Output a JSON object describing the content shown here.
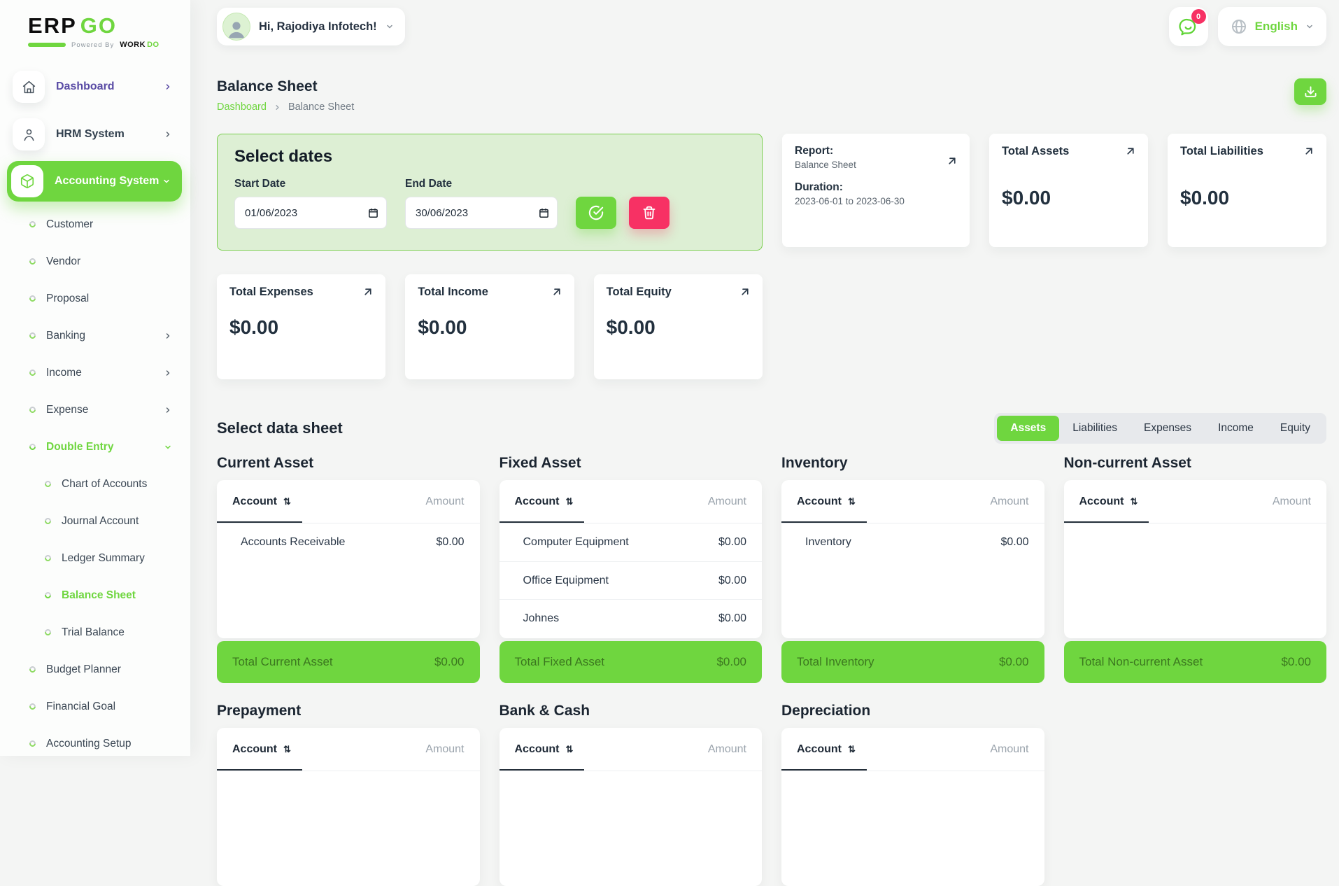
{
  "colors": {
    "accent_green": "#6FD63F",
    "light_green_bg": "#DDEFD4",
    "pink": "#F73164",
    "purple": "#5A4CA5",
    "navy": "#22303E"
  },
  "brand": {
    "erp": "ERP",
    "go": "GO",
    "powered_by": "Powered By",
    "work": "WORK",
    "do": "DO"
  },
  "header": {
    "greeting": "Hi, Rajodiya Infotech!",
    "notification_count": "0",
    "language": "English"
  },
  "sidebar": {
    "items": [
      {
        "label": "Dashboard",
        "level": 0,
        "icon": "home",
        "chevron": "right",
        "style": "purple"
      },
      {
        "label": "HRM System",
        "level": 0,
        "icon": "user",
        "chevron": "right",
        "style": ""
      },
      {
        "label": "Accounting System",
        "level": 0,
        "icon": "box",
        "chevron": "down",
        "style": "active"
      },
      {
        "label": "Customer",
        "level": 1,
        "chevron": "",
        "style": ""
      },
      {
        "label": "Vendor",
        "level": 1,
        "chevron": "",
        "style": ""
      },
      {
        "label": "Proposal",
        "level": 1,
        "chevron": "",
        "style": ""
      },
      {
        "label": "Banking",
        "level": 1,
        "chevron": "right",
        "style": ""
      },
      {
        "label": "Income",
        "level": 1,
        "chevron": "right",
        "style": ""
      },
      {
        "label": "Expense",
        "level": 1,
        "chevron": "right",
        "style": ""
      },
      {
        "label": "Double Entry",
        "level": 1,
        "chevron": "down",
        "style": "green"
      },
      {
        "label": "Chart of Accounts",
        "level": 2,
        "chevron": "",
        "style": ""
      },
      {
        "label": "Journal Account",
        "level": 2,
        "chevron": "",
        "style": ""
      },
      {
        "label": "Ledger Summary",
        "level": 2,
        "chevron": "",
        "style": ""
      },
      {
        "label": "Balance Sheet",
        "level": 2,
        "chevron": "",
        "style": "green"
      },
      {
        "label": "Trial Balance",
        "level": 2,
        "chevron": "",
        "style": ""
      },
      {
        "label": "Budget Planner",
        "level": 1,
        "chevron": "",
        "style": ""
      },
      {
        "label": "Financial Goal",
        "level": 1,
        "chevron": "",
        "style": ""
      },
      {
        "label": "Accounting Setup",
        "level": 1,
        "chevron": "",
        "style": ""
      }
    ]
  },
  "page": {
    "title": "Balance Sheet",
    "breadcrumb_home": "Dashboard",
    "breadcrumb_current": "Balance Sheet"
  },
  "filters": {
    "heading": "Select dates",
    "start_label": "Start Date",
    "end_label": "End Date",
    "start_value": "01/06/2023",
    "end_value": "30/06/2023"
  },
  "stats": {
    "report": {
      "label": "Report:",
      "value": "Balance Sheet",
      "duration_label": "Duration:",
      "duration_value": "2023-06-01 to 2023-06-30"
    },
    "cards": [
      {
        "label": "Total Assets",
        "value": "$0.00"
      },
      {
        "label": "Total Liabilities",
        "value": "$0.00"
      },
      {
        "label": "Total Expenses",
        "value": "$0.00"
      },
      {
        "label": "Total Income",
        "value": "$0.00"
      },
      {
        "label": "Total Equity",
        "value": "$0.00"
      }
    ]
  },
  "datasheet": {
    "heading": "Select data sheet",
    "tabs": [
      {
        "label": "Assets",
        "active": true
      },
      {
        "label": "Liabilities",
        "active": false
      },
      {
        "label": "Expenses",
        "active": false
      },
      {
        "label": "Income",
        "active": false
      },
      {
        "label": "Equity",
        "active": false
      }
    ]
  },
  "tables": {
    "account_header": "Account",
    "amount_header": "Amount",
    "sections": [
      {
        "title": "Current Asset",
        "rows": [
          [
            "Accounts Receivable",
            "$0.00"
          ]
        ],
        "total_label": "Total Current Asset",
        "total_value": "$0.00"
      },
      {
        "title": "Fixed Asset",
        "rows": [
          [
            "Computer Equipment",
            "$0.00"
          ],
          [
            "Office Equipment",
            "$0.00"
          ],
          [
            "Johnes",
            "$0.00"
          ]
        ],
        "total_label": "Total Fixed Asset",
        "total_value": "$0.00"
      },
      {
        "title": "Inventory",
        "rows": [
          [
            "Inventory",
            "$0.00"
          ]
        ],
        "total_label": "Total Inventory",
        "total_value": "$0.00"
      },
      {
        "title": "Non-current Asset",
        "rows": [],
        "total_label": "Total Non-current Asset",
        "total_value": "$0.00"
      },
      {
        "title": "Prepayment",
        "rows": [],
        "total_label": "",
        "total_value": ""
      },
      {
        "title": "Bank & Cash",
        "rows": [],
        "total_label": "",
        "total_value": ""
      },
      {
        "title": "Depreciation",
        "rows": [],
        "total_label": "",
        "total_value": ""
      }
    ]
  },
  "icons": {
    "sort_glyph": "⇅"
  }
}
